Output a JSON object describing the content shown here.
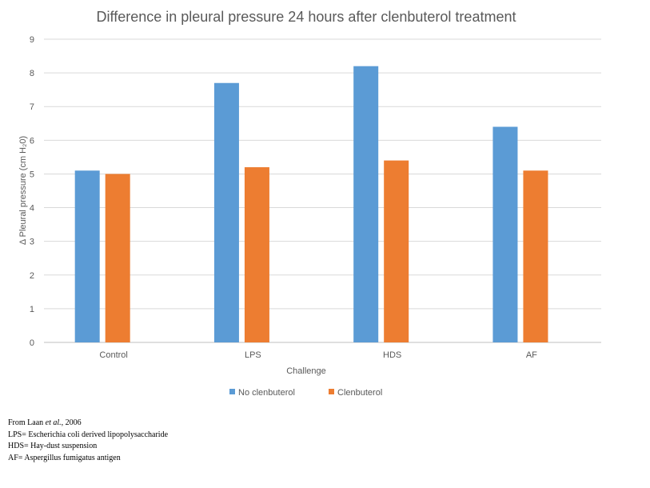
{
  "chart_data": {
    "type": "bar",
    "title": "Difference in pleural pressure 24 hours after clenbuterol treatment",
    "xlabel": "Challenge",
    "ylabel": "Δ Pleural pressure (cm H₂0)",
    "categories": [
      "Control",
      "LPS",
      "HDS",
      "AF"
    ],
    "series": [
      {
        "name": "No clenbuterol",
        "color": "#5b9bd5",
        "values": [
          5.1,
          7.7,
          8.2,
          6.4
        ]
      },
      {
        "name": "Clenbuterol",
        "color": "#ed7d31",
        "values": [
          5.0,
          5.2,
          5.4,
          5.1
        ]
      }
    ],
    "ylim": [
      0,
      9
    ],
    "yticks": [
      0,
      1,
      2,
      3,
      4,
      5,
      6,
      7,
      8,
      9
    ],
    "grid": true,
    "legend": "bottom"
  },
  "notes": {
    "source_prefix": "From Laan ",
    "source_italic": "et al.",
    "source_suffix": ", 2006",
    "lines": [
      "LPS= Escherichia coli derived lipopolysaccharide",
      "HDS= Hay-dust suspension",
      "AF= Aspergillus fumigatus antigen"
    ]
  }
}
